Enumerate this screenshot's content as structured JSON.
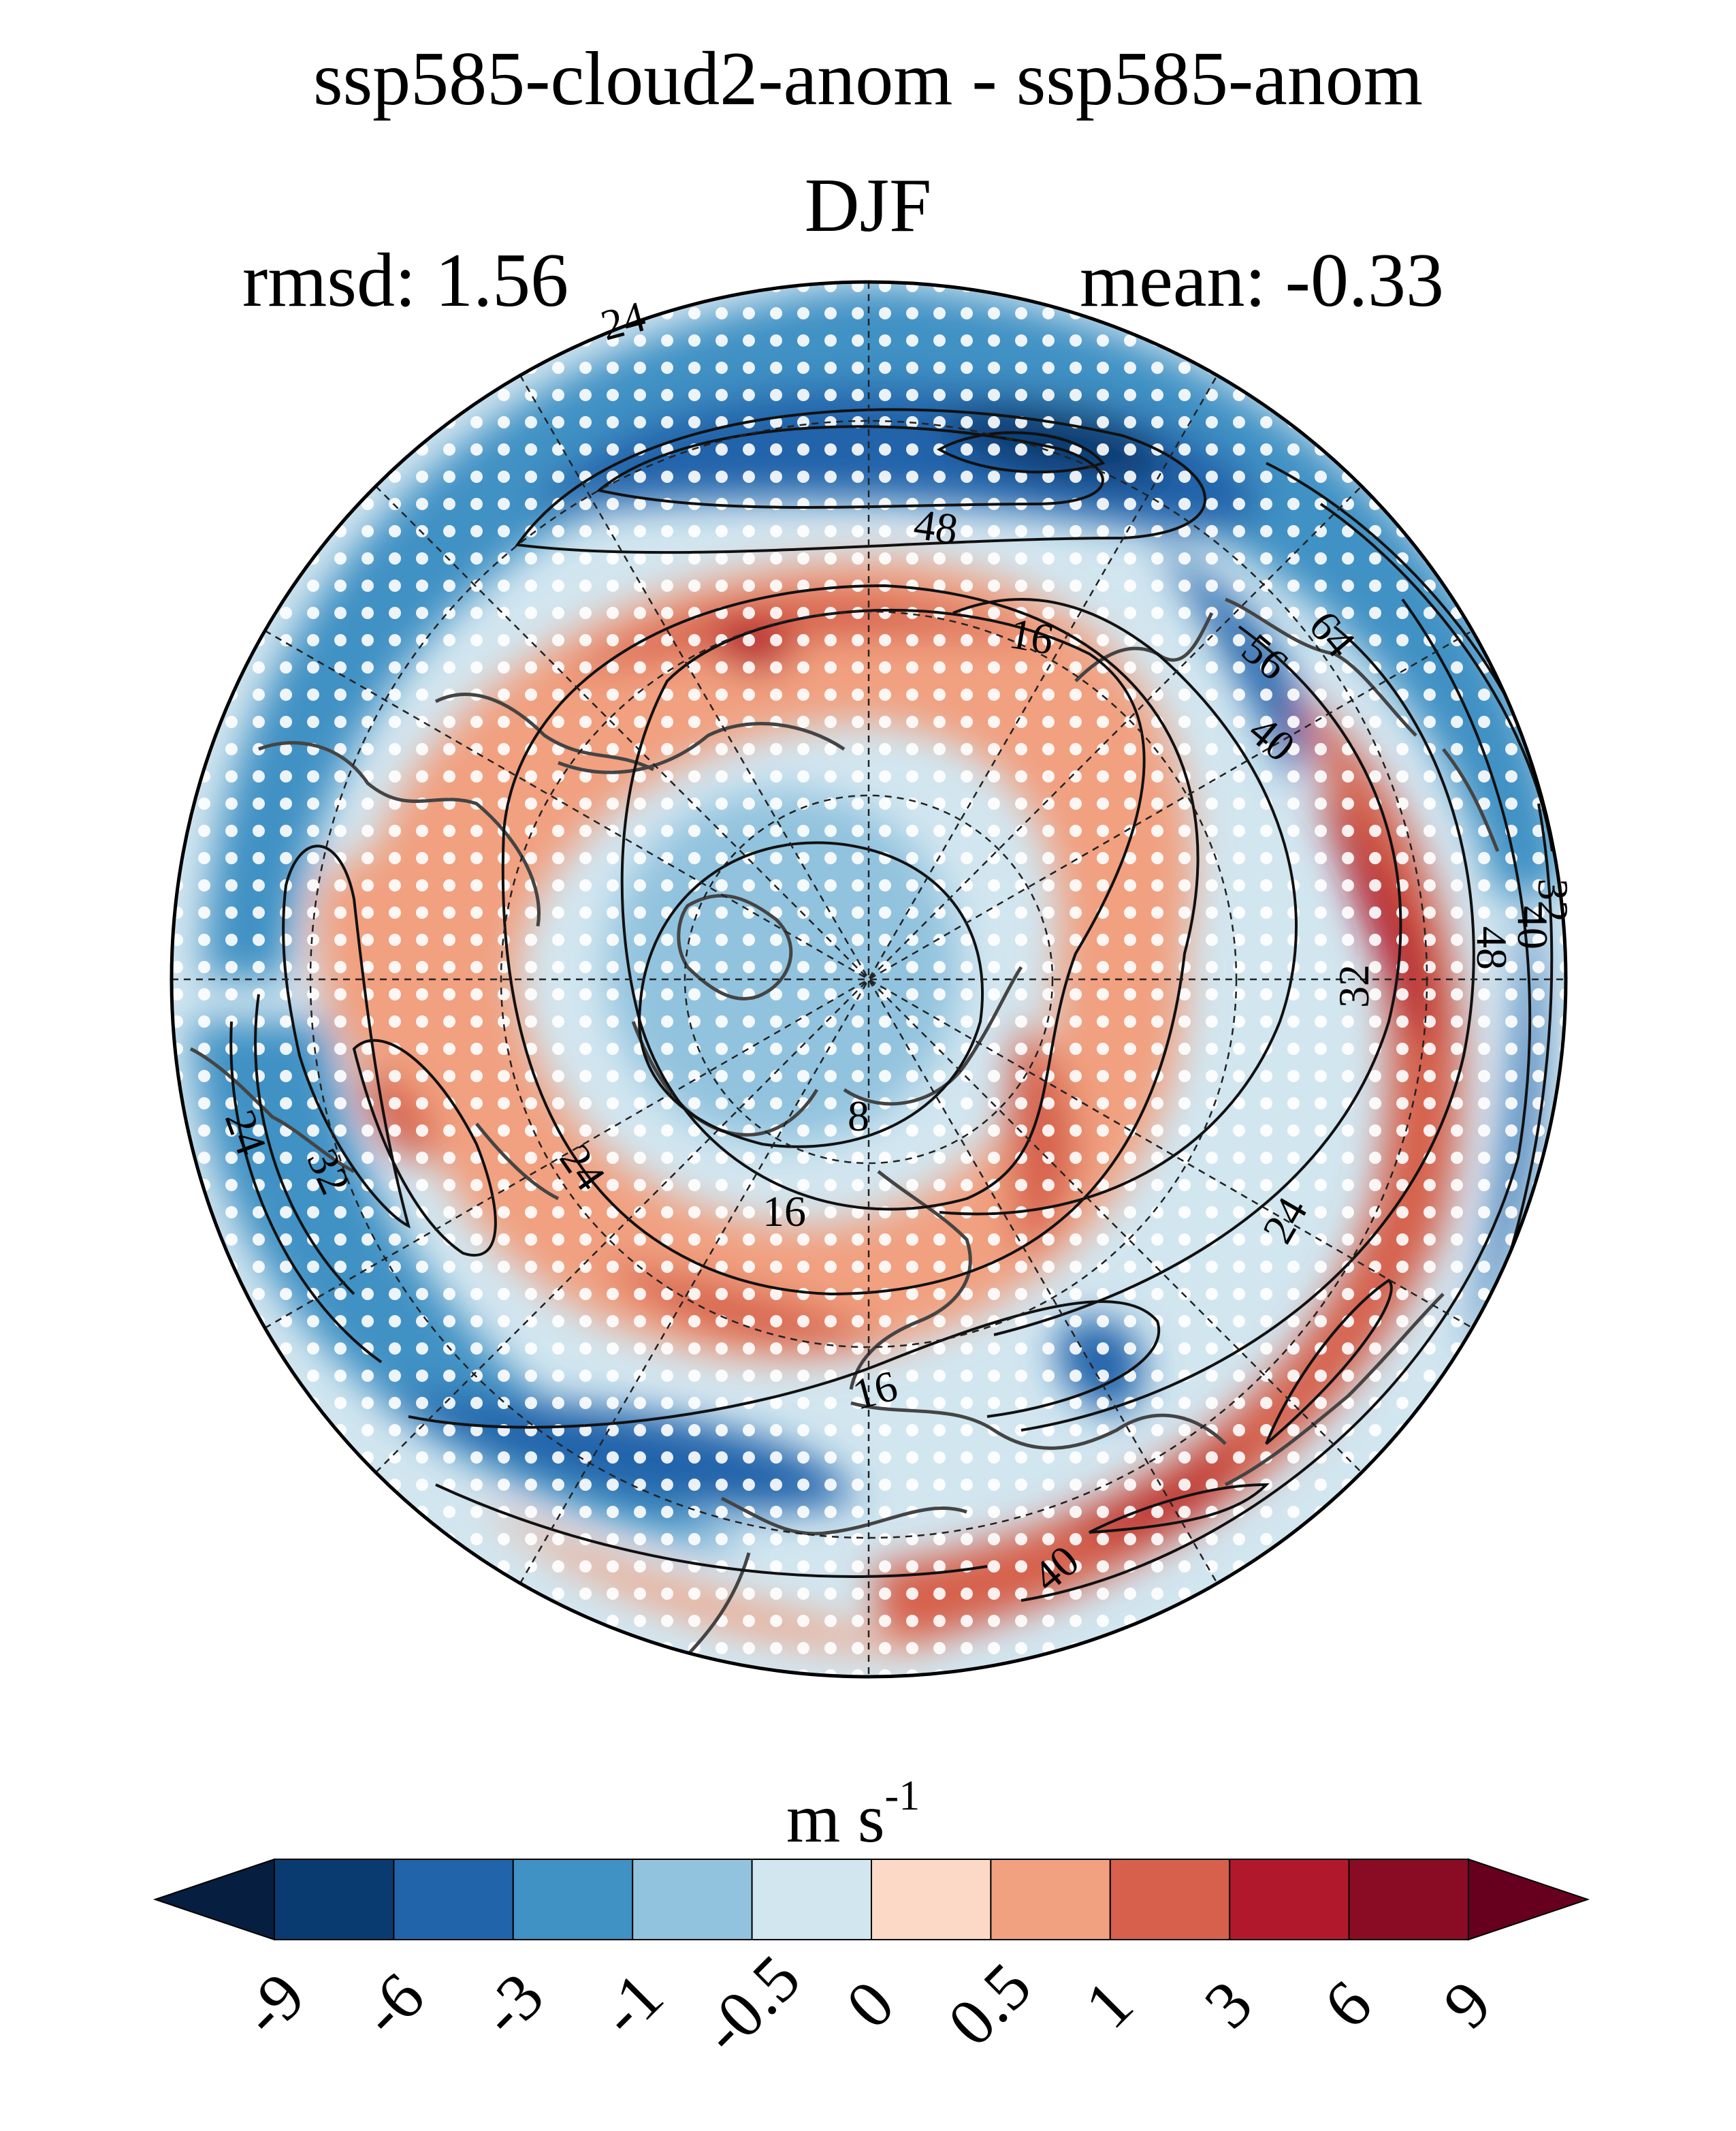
{
  "title": {
    "line1": "ssp585-cloud2-anom - ssp585-anom",
    "line2": "DJF"
  },
  "stats": {
    "left": "rmsd: 1.56",
    "right": "mean: -0.33"
  },
  "units": {
    "base": "m s",
    "exponent": "-1"
  },
  "colorbar": {
    "labels": [
      "-9",
      "-6",
      "-3",
      "-1",
      "-0.5",
      "0",
      "0.5",
      "1",
      "3",
      "6",
      "9"
    ],
    "colors": [
      "#061e3f",
      "#0a3b70",
      "#2164aa",
      "#4091c4",
      "#92c3de",
      "#d2e6f0",
      "#fcd9c6",
      "#f1a080",
      "#d6604c",
      "#b2182b",
      "#8a0b24",
      "#67001f"
    ]
  },
  "map": {
    "projection": "north polar stereographic",
    "contour_labels": [
      "24",
      "48",
      "16",
      "64",
      "56",
      "40",
      "32",
      "48",
      "40",
      "32",
      "8",
      "24",
      "24",
      "32",
      "16",
      "24",
      "16",
      "40"
    ],
    "colors": {
      "ocean": "#d2e6f0",
      "coast": "#444444",
      "contour": "#111111",
      "stipple": "#ffffff"
    }
  }
}
